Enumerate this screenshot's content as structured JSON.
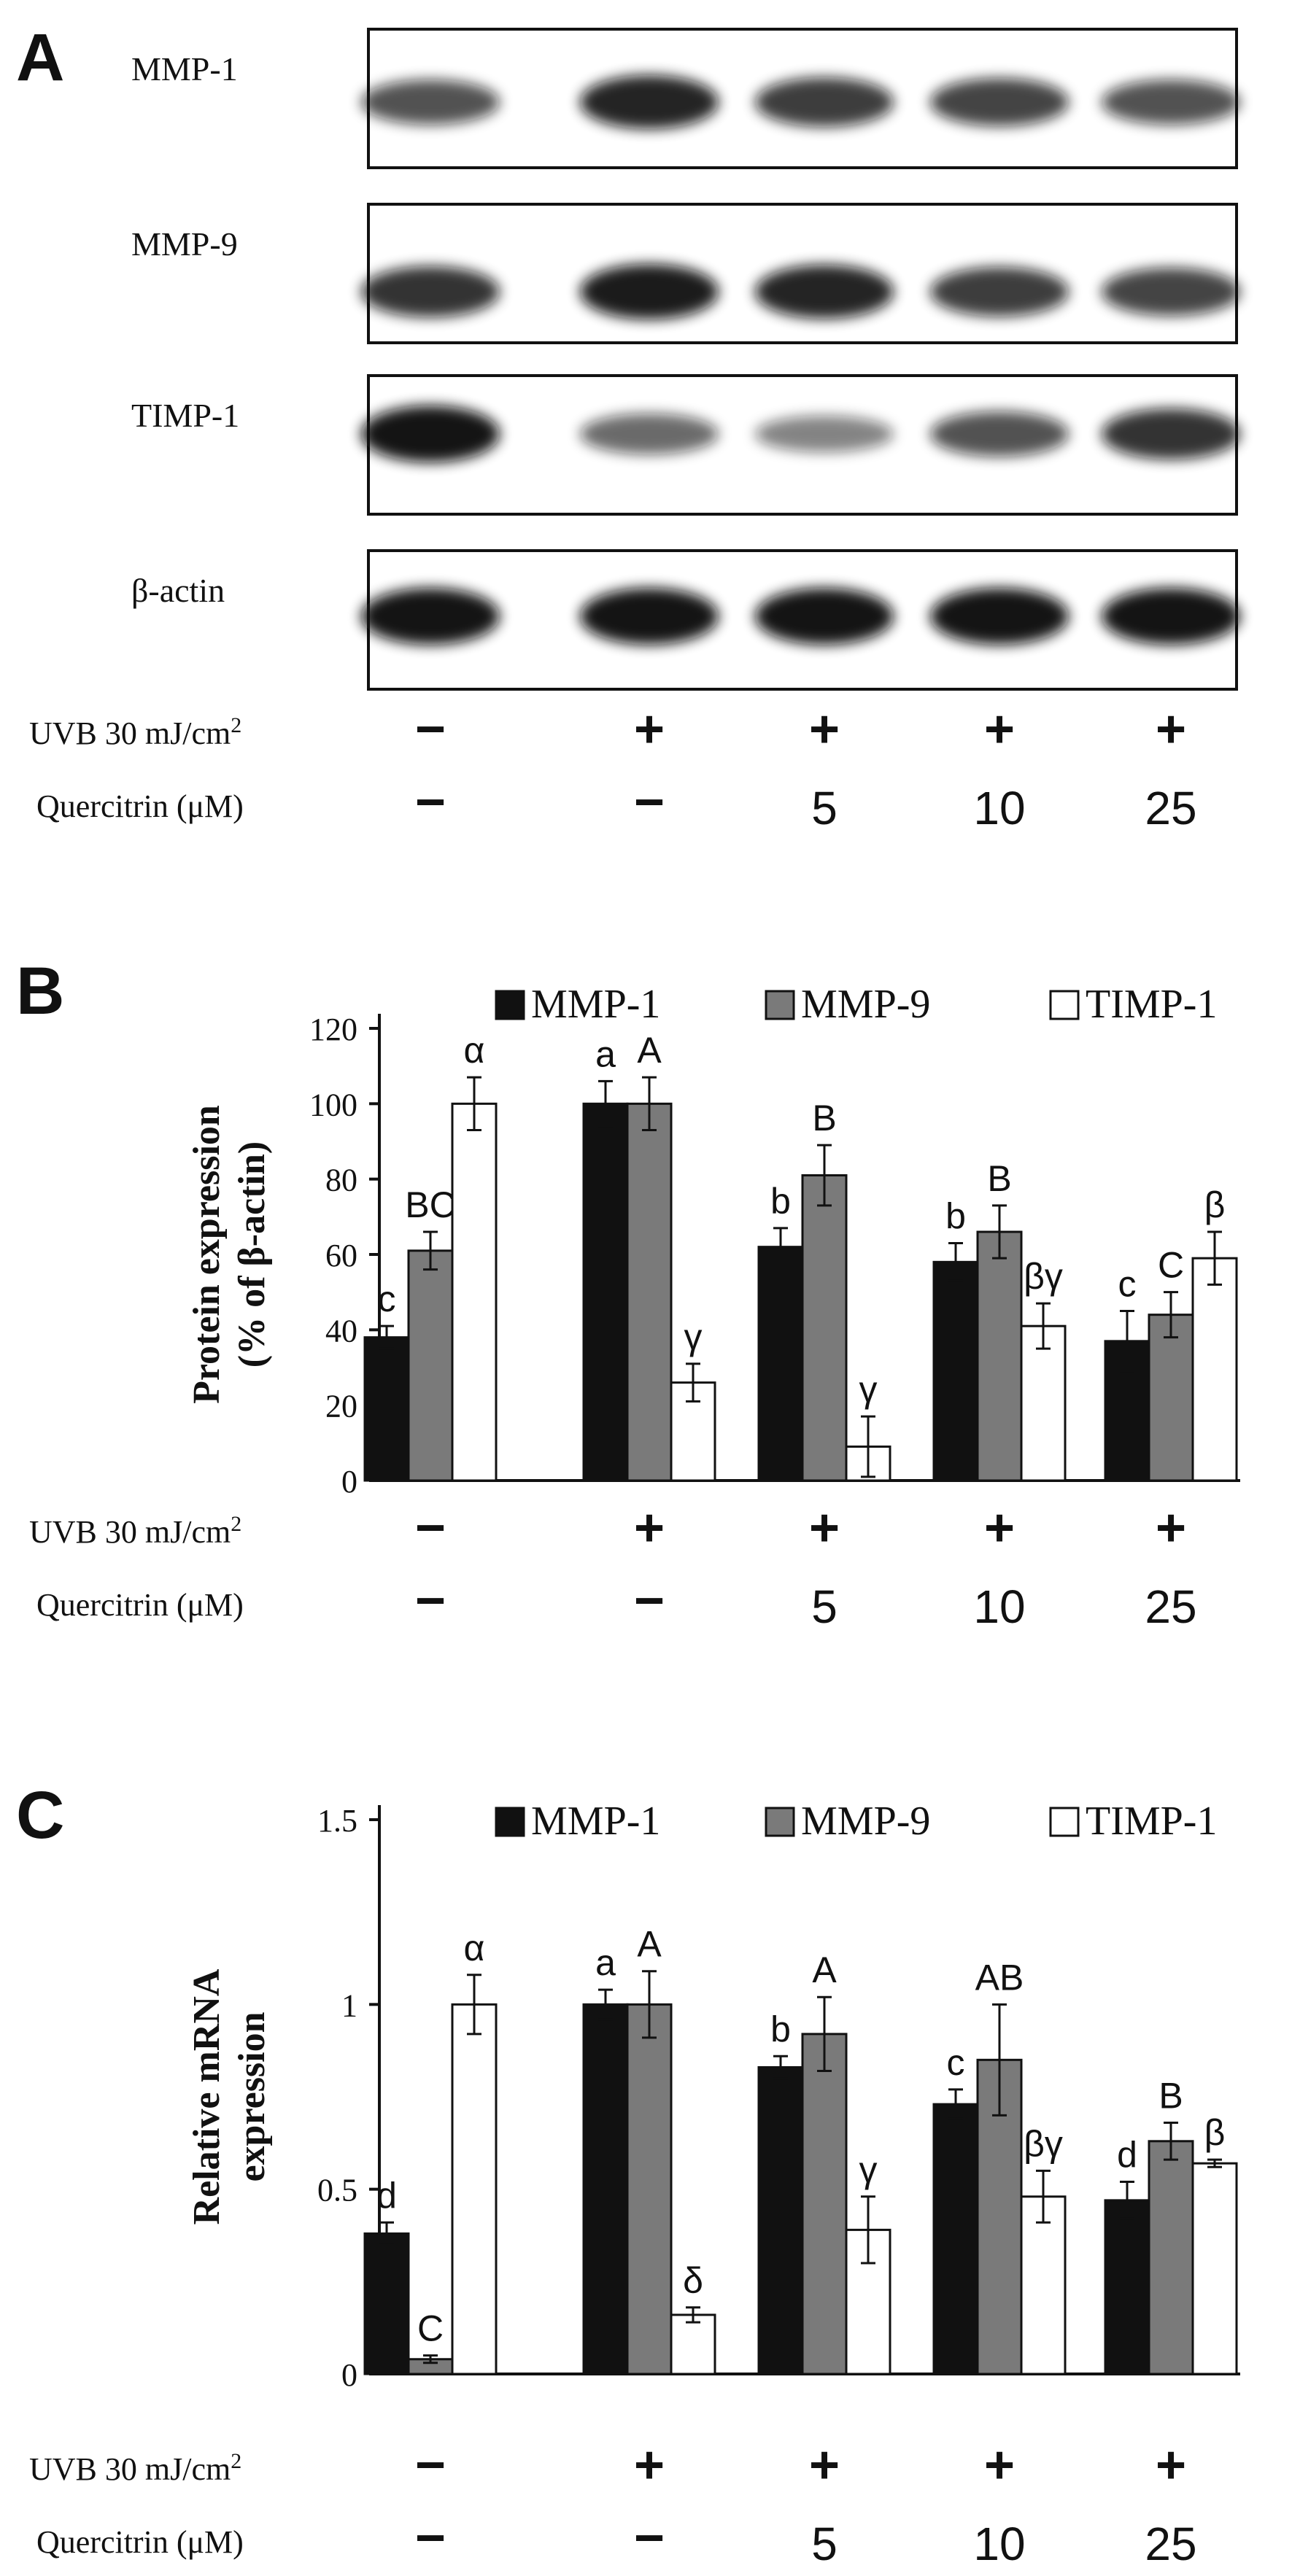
{
  "panels": {
    "a": "A",
    "b": "B",
    "c": "C"
  },
  "conditions": {
    "uvb_label": "UVB 30 mJ/cm",
    "uvb_sup": "2",
    "quercitrin_label": "Quercitrin (μM)",
    "uvb": [
      "−",
      "+",
      "+",
      "+",
      "+"
    ],
    "quercitrin": [
      "−",
      "−",
      "5",
      "10",
      "25"
    ]
  },
  "western_blot": {
    "rows": [
      {
        "label": "MMP-1",
        "intensity": [
          0.55,
          0.85,
          0.7,
          0.65,
          0.55
        ]
      },
      {
        "label": "MMP-9",
        "intensity": [
          0.75,
          0.9,
          0.85,
          0.7,
          0.65
        ]
      },
      {
        "label": "TIMP-1",
        "intensity": [
          0.95,
          0.4,
          0.25,
          0.55,
          0.75
        ]
      },
      {
        "label": "β-actin",
        "intensity": [
          0.95,
          0.95,
          0.95,
          0.95,
          0.95
        ]
      }
    ]
  },
  "colors": {
    "mmp1": "#111111",
    "mmp9": "#7a7a7a",
    "timp1": "#ffffff",
    "stroke": "#111111"
  },
  "chart_data": [
    {
      "type": "bar",
      "panel": "B",
      "ylabel": "Protein expression",
      "ylabel2": "(% of β-actin)",
      "ylim": [
        0,
        120
      ],
      "yticks": [
        "0",
        "20",
        "40",
        "60",
        "80",
        "100",
        "120"
      ],
      "categories": [
        "UVB − / Quercitrin −",
        "UVB + / Quercitrin −",
        "UVB + / Quercitrin 5",
        "UVB + / Quercitrin 10",
        "UVB + / Quercitrin 25"
      ],
      "legend": [
        "MMP-1",
        "MMP-9",
        "TIMP-1"
      ],
      "series": [
        {
          "name": "MMP-1",
          "values": [
            38,
            100,
            62,
            58,
            37
          ],
          "errors": [
            3,
            6,
            5,
            5,
            8
          ],
          "labels": [
            "c",
            "a",
            "b",
            "b",
            "c"
          ]
        },
        {
          "name": "MMP-9",
          "values": [
            61,
            100,
            81,
            66,
            44
          ],
          "errors": [
            5,
            7,
            8,
            7,
            6
          ],
          "labels": [
            "BC",
            "A",
            "B",
            "B",
            "C"
          ]
        },
        {
          "name": "TIMP-1",
          "values": [
            100,
            26,
            9,
            41,
            59
          ],
          "errors": [
            7,
            5,
            8,
            6,
            7
          ],
          "labels": [
            "α",
            "γ",
            "γ",
            "βγ",
            "β"
          ]
        }
      ]
    },
    {
      "type": "bar",
      "panel": "C",
      "ylabel": "Relative mRNA",
      "ylabel2": "expression",
      "ylim": [
        0,
        1.5
      ],
      "yticks": [
        "0",
        "0.5",
        "1",
        "1.5"
      ],
      "categories": [
        "UVB − / Quercitrin −",
        "UVB + / Quercitrin −",
        "UVB + / Quercitrin 5",
        "UVB + / Quercitrin 10",
        "UVB + / Quercitrin 25"
      ],
      "legend": [
        "MMP-1",
        "MMP-9",
        "TIMP-1"
      ],
      "series": [
        {
          "name": "MMP-1",
          "values": [
            0.38,
            1.0,
            0.83,
            0.73,
            0.47
          ],
          "errors": [
            0.03,
            0.04,
            0.03,
            0.04,
            0.05
          ],
          "labels": [
            "d",
            "a",
            "b",
            "c",
            "d"
          ]
        },
        {
          "name": "MMP-9",
          "values": [
            0.04,
            1.0,
            0.92,
            0.85,
            0.63
          ],
          "errors": [
            0.01,
            0.09,
            0.1,
            0.15,
            0.05
          ],
          "labels": [
            "C",
            "A",
            "A",
            "AB",
            "B"
          ]
        },
        {
          "name": "TIMP-1",
          "values": [
            1.0,
            0.16,
            0.39,
            0.48,
            0.57
          ],
          "errors": [
            0.08,
            0.02,
            0.09,
            0.07,
            0.01
          ],
          "labels": [
            "α",
            "δ",
            "γ",
            "βγ",
            "β"
          ]
        }
      ]
    }
  ]
}
